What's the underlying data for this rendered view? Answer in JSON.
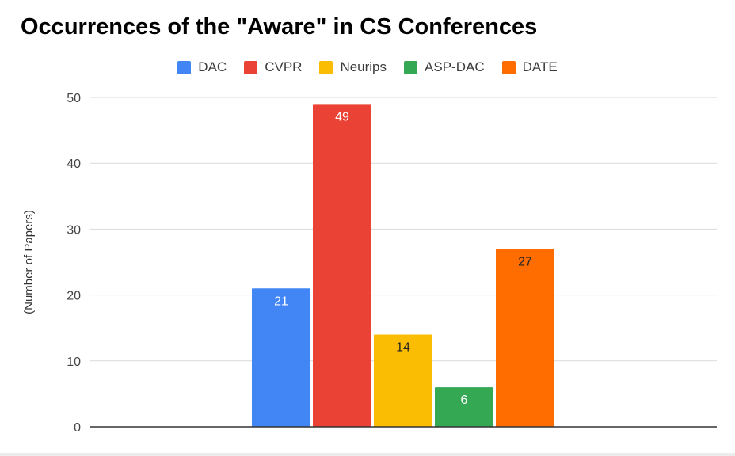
{
  "chart_data": {
    "type": "bar",
    "title": "Occurrences of the \"Aware\" in CS Conferences",
    "xlabel": "",
    "ylabel": "(Number of Papers)",
    "ylim": [
      0,
      50
    ],
    "yticks": [
      "0",
      "10",
      "20",
      "30",
      "40",
      "50"
    ],
    "grid": true,
    "legend_position": "top",
    "series": [
      {
        "name": "DAC",
        "value": 21,
        "label": "21",
        "color": "#4285f4",
        "label_color": "#ffffff"
      },
      {
        "name": "CVPR",
        "value": 49,
        "label": "49",
        "color": "#ea4335",
        "label_color": "#ffffff"
      },
      {
        "name": "Neurips",
        "value": 14,
        "label": "14",
        "color": "#fbbc04",
        "label_color": "#222222"
      },
      {
        "name": "ASP-DAC",
        "value": 6,
        "label": "6",
        "color": "#34a853",
        "label_color": "#ffffff"
      },
      {
        "name": "DATE",
        "value": 27,
        "label": "27",
        "color": "#ff6d01",
        "label_color": "#222222"
      }
    ]
  }
}
